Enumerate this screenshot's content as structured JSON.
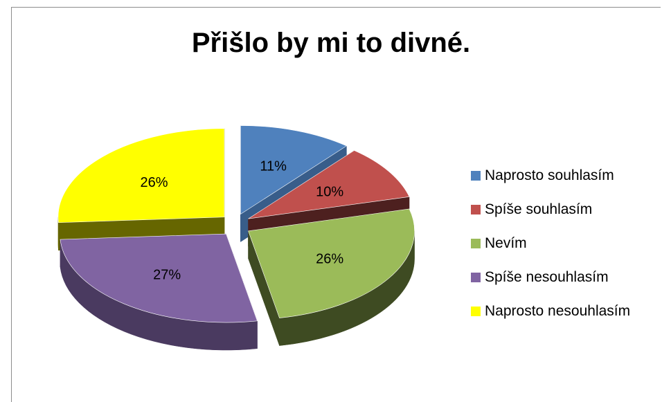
{
  "chart_data": {
    "type": "pie",
    "title": "Přišlo by mi to divné.",
    "slices": [
      {
        "name": "Naprosto souhlasím",
        "value": 11,
        "label": "11%",
        "color": "#4f81bd",
        "side": "#385d8a"
      },
      {
        "name": "Spíše souhlasím",
        "value": 10,
        "label": "10%",
        "color": "#c0504d",
        "side": "#4d201f"
      },
      {
        "name": "Nevím",
        "value": 26,
        "label": "26%",
        "color": "#9bbb59",
        "side": "#3e4b22"
      },
      {
        "name": "Spíše nesouhlasím",
        "value": 27,
        "label": "27%",
        "color": "#8064a2",
        "side": "#4a3a60"
      },
      {
        "name": "Naprosto nesouhlasím",
        "value": 26,
        "label": "26%",
        "color": "#ffff00",
        "side": "#666600"
      }
    ],
    "legend_position": "right",
    "exploded": true,
    "style": "3d"
  }
}
